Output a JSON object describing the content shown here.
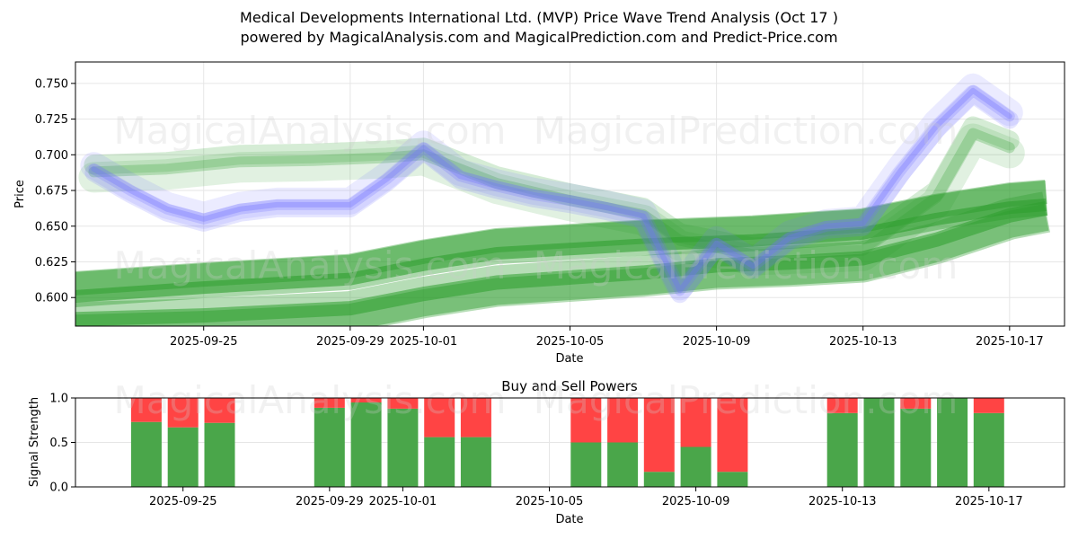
{
  "title_line1": "Medical Developments International Ltd. (MVP) Price Wave Trend Analysis (Oct 17 )",
  "title_line2": "powered by MagicalAnalysis.com and MagicalPrediction.com and Predict-Price.com",
  "watermarks": [
    "MagicalAnalysis.com",
    "MagicalPrediction.com"
  ],
  "colors": {
    "green_band": "#2e9e2e",
    "blue_band": "#6f6fff",
    "buy": "#4aa64a",
    "sell": "#ff4444",
    "grid": "#e6e6e6"
  },
  "chart_data": [
    {
      "type": "line",
      "title": "",
      "xlabel": "Date",
      "ylabel": "Price",
      "ylim": [
        0.58,
        0.765
      ],
      "x_range": [
        "2025-09-21T12:00",
        "2025-10-18T12:00"
      ],
      "x_ticks": [
        "2025-09-25",
        "2025-09-29",
        "2025-10-01",
        "2025-10-05",
        "2025-10-09",
        "2025-10-13",
        "2025-10-17"
      ],
      "y_ticks": [
        "0.600",
        "0.625",
        "0.650",
        "0.675",
        "0.700",
        "0.725",
        "0.750"
      ],
      "grid": true,
      "series": [
        {
          "name": "blue wave (actual price)",
          "color": "#6f6fff",
          "x": [
            "2025-09-22",
            "2025-09-23",
            "2025-09-24",
            "2025-09-25",
            "2025-09-26",
            "2025-09-27",
            "2025-09-28",
            "2025-09-29",
            "2025-09-30",
            "2025-10-01",
            "2025-10-02",
            "2025-10-03",
            "2025-10-04",
            "2025-10-05",
            "2025-10-06",
            "2025-10-07",
            "2025-10-08",
            "2025-10-09",
            "2025-10-10",
            "2025-10-11",
            "2025-10-12",
            "2025-10-13",
            "2025-10-14",
            "2025-10-15",
            "2025-10-16",
            "2025-10-17"
          ],
          "values": [
            0.69,
            0.675,
            0.662,
            0.655,
            0.662,
            0.665,
            0.665,
            0.665,
            0.683,
            0.705,
            0.685,
            0.678,
            0.672,
            0.668,
            0.663,
            0.657,
            0.605,
            0.638,
            0.622,
            0.642,
            0.65,
            0.652,
            0.688,
            0.72,
            0.745,
            0.727
          ]
        },
        {
          "name": "green wave (upper)",
          "color": "#2e9e2e",
          "x": [
            "2025-09-22",
            "2025-09-24",
            "2025-09-26",
            "2025-09-28",
            "2025-09-30",
            "2025-10-01",
            "2025-10-02",
            "2025-10-03",
            "2025-10-05",
            "2025-10-07",
            "2025-10-08",
            "2025-10-10",
            "2025-10-13",
            "2025-10-15",
            "2025-10-16",
            "2025-10-17"
          ],
          "values": [
            0.688,
            0.69,
            0.695,
            0.696,
            0.698,
            0.7,
            0.69,
            0.68,
            0.668,
            0.658,
            0.64,
            0.63,
            0.633,
            0.67,
            0.715,
            0.705
          ]
        },
        {
          "name": "green trend band",
          "color": "#2e9e2e",
          "x": [
            "2025-09-21",
            "2025-09-25",
            "2025-09-29",
            "2025-10-01",
            "2025-10-03",
            "2025-10-07",
            "2025-10-10",
            "2025-10-13",
            "2025-10-15",
            "2025-10-17",
            "2025-10-18"
          ],
          "values": [
            0.605,
            0.612,
            0.618,
            0.628,
            0.636,
            0.642,
            0.645,
            0.65,
            0.66,
            0.668,
            0.67
          ]
        },
        {
          "name": "green lower band",
          "color": "#2e9e2e",
          "x": [
            "2025-09-21",
            "2025-09-25",
            "2025-09-29",
            "2025-10-01",
            "2025-10-03",
            "2025-10-07",
            "2025-10-09",
            "2025-10-11",
            "2025-10-13",
            "2025-10-15",
            "2025-10-17",
            "2025-10-18"
          ],
          "values": [
            0.582,
            0.585,
            0.59,
            0.6,
            0.608,
            0.615,
            0.62,
            0.622,
            0.625,
            0.638,
            0.655,
            0.66
          ]
        }
      ]
    },
    {
      "type": "bar",
      "title": "Buy and Sell Powers",
      "xlabel": "Date",
      "ylabel": "Signal Strength",
      "ylim": [
        0,
        1
      ],
      "y_ticks": [
        "0.0",
        "0.5",
        "1.0"
      ],
      "x_ticks": [
        "2025-09-25",
        "2025-09-29",
        "2025-10-01",
        "2025-10-05",
        "2025-10-09",
        "2025-10-13",
        "2025-10-17"
      ],
      "grid": true,
      "categories": [
        "2025-09-24",
        "2025-09-25",
        "2025-09-26",
        "2025-09-29",
        "2025-09-30",
        "2025-10-01",
        "2025-10-02",
        "2025-10-03",
        "2025-10-06",
        "2025-10-07",
        "2025-10-08",
        "2025-10-09",
        "2025-10-10",
        "2025-10-13",
        "2025-10-14",
        "2025-10-15",
        "2025-10-16",
        "2025-10-17"
      ],
      "series": [
        {
          "name": "Buy",
          "color": "#4aa64a",
          "values": [
            0.73,
            0.67,
            0.72,
            0.89,
            0.95,
            0.88,
            0.56,
            0.56,
            0.5,
            0.5,
            0.17,
            0.45,
            0.17,
            0.83,
            1.0,
            0.88,
            1.0,
            0.83
          ]
        },
        {
          "name": "Sell",
          "color": "#ff4444",
          "values": [
            0.27,
            0.33,
            0.28,
            0.11,
            0.05,
            0.12,
            0.44,
            0.44,
            0.5,
            0.5,
            0.83,
            0.55,
            0.83,
            0.17,
            0.0,
            0.12,
            0.0,
            0.17
          ]
        }
      ]
    }
  ]
}
